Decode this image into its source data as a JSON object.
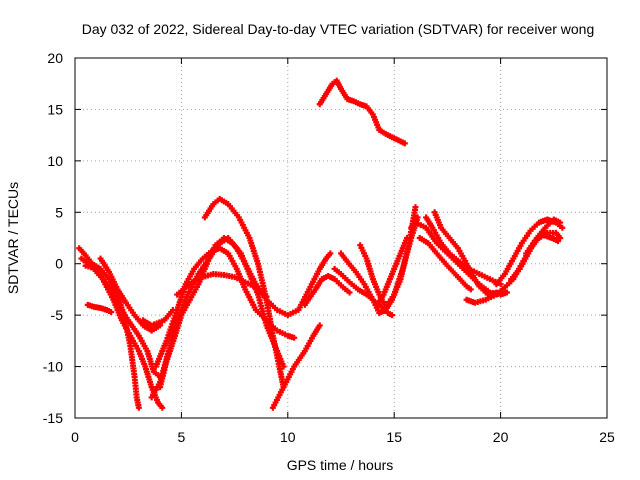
{
  "chart_data": {
    "type": "scatter",
    "title": "Day 032 of 2022, Sidereal Day-to-day VTEC variation (SDTVAR) for receiver wong",
    "xlabel": "GPS time / hours",
    "ylabel": "SDTVAR / TECUs",
    "xlim": [
      0,
      25
    ],
    "ylim": [
      -15,
      20
    ],
    "xticks": [
      0,
      5,
      10,
      15,
      20,
      25
    ],
    "yticks": [
      -15,
      -10,
      -5,
      0,
      5,
      10,
      15,
      20
    ],
    "grid": true,
    "marker": "+",
    "color": "#ff0000",
    "series": [
      {
        "name": "s1",
        "points": [
          [
            0.2,
            1.5
          ],
          [
            0.5,
            0.8
          ],
          [
            0.8,
            0
          ],
          [
            1.2,
            -0.5
          ],
          [
            1.6,
            -1.5
          ],
          [
            2.0,
            -3
          ],
          [
            2.3,
            -5
          ],
          [
            2.6,
            -8
          ],
          [
            2.8,
            -11
          ],
          [
            2.9,
            -13
          ],
          [
            3.0,
            -14
          ]
        ]
      },
      {
        "name": "s2",
        "points": [
          [
            0.3,
            0.5
          ],
          [
            0.8,
            -0.3
          ],
          [
            1.3,
            -1.5
          ],
          [
            1.8,
            -3.5
          ],
          [
            2.2,
            -5.5
          ],
          [
            2.6,
            -7
          ],
          [
            3.0,
            -8.5
          ],
          [
            3.3,
            -10
          ],
          [
            3.6,
            -12
          ],
          [
            3.9,
            -13.5
          ],
          [
            4.1,
            -14
          ]
        ]
      },
      {
        "name": "s3",
        "points": [
          [
            0.5,
            -0.2
          ],
          [
            1.0,
            -0.5
          ],
          [
            1.5,
            -2
          ],
          [
            2.0,
            -3.8
          ],
          [
            2.5,
            -5.5
          ],
          [
            3.0,
            -7
          ],
          [
            3.4,
            -8.5
          ],
          [
            3.7,
            -10.5
          ],
          [
            4.0,
            -11
          ]
        ]
      },
      {
        "name": "s4",
        "points": [
          [
            1.2,
            0.5
          ],
          [
            1.6,
            -0.8
          ],
          [
            2.0,
            -2.5
          ],
          [
            2.4,
            -3.8
          ],
          [
            2.8,
            -5
          ],
          [
            3.2,
            -6
          ],
          [
            3.6,
            -6.5
          ],
          [
            4.0,
            -6
          ]
        ]
      },
      {
        "name": "s5",
        "points": [
          [
            0.6,
            -4
          ],
          [
            0.9,
            -4.2
          ],
          [
            1.2,
            -4.3
          ],
          [
            1.5,
            -4.5
          ],
          [
            1.7,
            -4.7
          ]
        ]
      },
      {
        "name": "s6",
        "points": [
          [
            3.2,
            -5.5
          ],
          [
            3.6,
            -6
          ],
          [
            4.2,
            -5.5
          ],
          [
            4.6,
            -4.5
          ]
        ]
      },
      {
        "name": "s7",
        "points": [
          [
            3.6,
            -13
          ],
          [
            4.0,
            -11.5
          ],
          [
            4.4,
            -8.5
          ],
          [
            4.8,
            -5.5
          ],
          [
            5.3,
            -3
          ],
          [
            5.8,
            -1
          ],
          [
            6.3,
            0.5
          ],
          [
            6.8,
            2
          ],
          [
            7.2,
            2.5
          ],
          [
            7.6,
            1.5
          ],
          [
            8.0,
            0
          ],
          [
            8.5,
            -2
          ],
          [
            9.0,
            -3.5
          ],
          [
            9.5,
            -4.5
          ],
          [
            10.0,
            -5
          ],
          [
            10.5,
            -4.5
          ],
          [
            11.0,
            -2.5
          ],
          [
            11.5,
            -0.5
          ],
          [
            11.8,
            0.5
          ],
          [
            12.0,
            1
          ]
        ]
      },
      {
        "name": "s8",
        "points": [
          [
            3.8,
            -10
          ],
          [
            4.3,
            -7.5
          ],
          [
            4.8,
            -4.5
          ],
          [
            5.2,
            -2
          ],
          [
            5.6,
            -0.5
          ],
          [
            6.0,
            0.5
          ],
          [
            6.4,
            1.2
          ],
          [
            6.8,
            1.5
          ],
          [
            7.2,
            1
          ],
          [
            7.6,
            -0.5
          ],
          [
            8.0,
            -2.5
          ],
          [
            8.5,
            -4.5
          ],
          [
            9.0,
            -5.5
          ],
          [
            9.5,
            -6.5
          ],
          [
            10.0,
            -7
          ],
          [
            10.3,
            -7.2
          ]
        ]
      },
      {
        "name": "s9",
        "points": [
          [
            4.0,
            -12
          ],
          [
            4.3,
            -9.5
          ],
          [
            4.7,
            -7
          ],
          [
            5.0,
            -5
          ],
          [
            5.4,
            -3.5
          ],
          [
            5.8,
            -2
          ],
          [
            6.2,
            0
          ],
          [
            6.6,
            1.8
          ],
          [
            7.0,
            2.5
          ],
          [
            7.4,
            2
          ],
          [
            7.8,
            1
          ],
          [
            8.2,
            -1
          ],
          [
            8.6,
            -3
          ],
          [
            9.0,
            -6
          ],
          [
            9.4,
            -8
          ],
          [
            9.8,
            -10
          ]
        ]
      },
      {
        "name": "s10",
        "points": [
          [
            4.8,
            -3
          ],
          [
            5.5,
            -1.8
          ],
          [
            6.0,
            -1.3
          ],
          [
            6.5,
            -1
          ],
          [
            7.0,
            -1.1
          ],
          [
            7.5,
            -1.3
          ],
          [
            8.0,
            -1.8
          ],
          [
            8.5,
            -2.3
          ],
          [
            9.0,
            -3.2
          ]
        ]
      },
      {
        "name": "s11",
        "points": [
          [
            6.1,
            4.5
          ],
          [
            6.5,
            5.8
          ],
          [
            6.8,
            6.3
          ],
          [
            7.2,
            5.8
          ],
          [
            7.7,
            4.5
          ],
          [
            8.2,
            2.5
          ],
          [
            8.6,
            0
          ],
          [
            9.0,
            -3.5
          ],
          [
            9.3,
            -7
          ],
          [
            9.6,
            -10
          ],
          [
            9.8,
            -12
          ]
        ]
      },
      {
        "name": "s12",
        "points": [
          [
            9.3,
            -14
          ],
          [
            9.8,
            -12
          ],
          [
            10.3,
            -10
          ],
          [
            10.8,
            -8.5
          ],
          [
            11.2,
            -7
          ],
          [
            11.5,
            -6
          ]
        ]
      },
      {
        "name": "s13",
        "points": [
          [
            10.8,
            -4
          ],
          [
            11.3,
            -2.5
          ],
          [
            11.6,
            -1.5
          ],
          [
            11.9,
            -1.2
          ],
          [
            12.2,
            -1.5
          ],
          [
            12.6,
            -2.3
          ],
          [
            12.9,
            -2.8
          ]
        ]
      },
      {
        "name": "s14",
        "points": [
          [
            11.5,
            15.5
          ],
          [
            11.8,
            16.5
          ],
          [
            12.1,
            17.5
          ],
          [
            12.3,
            17.8
          ],
          [
            12.5,
            17
          ],
          [
            12.8,
            16
          ],
          [
            13.1,
            15.8
          ],
          [
            13.4,
            15.5
          ],
          [
            13.7,
            15.3
          ],
          [
            14.0,
            14.5
          ],
          [
            14.3,
            13
          ],
          [
            14.7,
            12.5
          ],
          [
            15.0,
            12.2
          ],
          [
            15.4,
            11.8
          ],
          [
            15.5,
            11.7
          ]
        ]
      },
      {
        "name": "s15",
        "points": [
          [
            12.2,
            -0.5
          ],
          [
            12.5,
            -1
          ],
          [
            12.9,
            -1.8
          ],
          [
            13.3,
            -2.5
          ],
          [
            13.7,
            -3
          ],
          [
            14.0,
            -3.5
          ],
          [
            14.4,
            -4.2
          ],
          [
            14.7,
            -4.8
          ],
          [
            14.9,
            -5
          ]
        ]
      },
      {
        "name": "s16",
        "points": [
          [
            12.5,
            1
          ],
          [
            12.8,
            0.2
          ],
          [
            13.2,
            -0.8
          ],
          [
            13.6,
            -2
          ],
          [
            14.0,
            -3.5
          ],
          [
            14.3,
            -4.8
          ],
          [
            14.6,
            -4.5
          ],
          [
            14.9,
            -3.5
          ],
          [
            15.3,
            -1.5
          ],
          [
            15.7,
            2
          ],
          [
            16.0,
            5.5
          ]
        ]
      },
      {
        "name": "s17",
        "points": [
          [
            13.4,
            1.8
          ],
          [
            13.7,
            0.5
          ],
          [
            14.0,
            -1.5
          ],
          [
            14.3,
            -3
          ],
          [
            14.6,
            -4.2
          ],
          [
            15.0,
            -3
          ],
          [
            15.4,
            -0.5
          ],
          [
            15.8,
            2.5
          ],
          [
            16.1,
            4.5
          ]
        ]
      },
      {
        "name": "s18",
        "points": [
          [
            14.2,
            -4
          ],
          [
            14.5,
            -3
          ],
          [
            14.8,
            -1.5
          ],
          [
            15.1,
            0
          ],
          [
            15.4,
            1.5
          ],
          [
            15.6,
            2.5
          ]
        ]
      },
      {
        "name": "s19",
        "points": [
          [
            15.8,
            3.5
          ],
          [
            16.0,
            4
          ],
          [
            16.5,
            3.5
          ],
          [
            17.0,
            2
          ],
          [
            17.5,
            1
          ],
          [
            18.0,
            0
          ],
          [
            18.5,
            -1
          ],
          [
            19.0,
            -2
          ],
          [
            19.5,
            -2.8
          ],
          [
            20.0,
            -3
          ],
          [
            20.3,
            -2.8
          ]
        ]
      },
      {
        "name": "s20",
        "points": [
          [
            16.5,
            4.5
          ],
          [
            16.8,
            3.5
          ],
          [
            17.2,
            2
          ],
          [
            17.6,
            1
          ],
          [
            18.0,
            0.3
          ],
          [
            18.5,
            -0.5
          ],
          [
            19.0,
            -1
          ],
          [
            19.5,
            -1.5
          ],
          [
            20.0,
            -2
          ]
        ]
      },
      {
        "name": "s21",
        "points": [
          [
            16.9,
            5
          ],
          [
            17.2,
            3.5
          ],
          [
            17.6,
            2.5
          ],
          [
            18.0,
            1.5
          ],
          [
            18.4,
            0
          ],
          [
            18.7,
            -1.2
          ],
          [
            19.0,
            -2.2
          ],
          [
            19.4,
            -3
          ],
          [
            19.8,
            -2.8
          ]
        ]
      },
      {
        "name": "s22",
        "points": [
          [
            16.2,
            2.5
          ],
          [
            16.6,
            2
          ],
          [
            17.0,
            1
          ],
          [
            17.5,
            -0.2
          ],
          [
            18.0,
            -1.3
          ],
          [
            18.4,
            -2.2
          ],
          [
            18.6,
            -2.5
          ]
        ]
      },
      {
        "name": "s23",
        "points": [
          [
            18.4,
            -3.5
          ],
          [
            18.8,
            -3.8
          ],
          [
            19.3,
            -3.5
          ],
          [
            19.8,
            -3
          ],
          [
            20.2,
            -2.3
          ],
          [
            20.6,
            -1.5
          ],
          [
            21.0,
            0
          ],
          [
            21.4,
            1.5
          ],
          [
            21.8,
            2.5
          ],
          [
            22.2,
            3
          ],
          [
            22.6,
            3
          ],
          [
            22.8,
            2.5
          ]
        ]
      },
      {
        "name": "s24",
        "points": [
          [
            19.8,
            -2
          ],
          [
            20.2,
            -1
          ],
          [
            20.6,
            0.5
          ],
          [
            21.0,
            2
          ],
          [
            21.4,
            3.2
          ],
          [
            21.8,
            4
          ],
          [
            22.2,
            4.3
          ],
          [
            22.6,
            4
          ],
          [
            22.9,
            3.5
          ]
        ]
      },
      {
        "name": "s25",
        "points": [
          [
            20.5,
            -1.5
          ],
          [
            20.9,
            -0.5
          ],
          [
            21.3,
            1
          ],
          [
            21.7,
            2.5
          ],
          [
            22.1,
            3.5
          ],
          [
            22.5,
            4.3
          ],
          [
            22.8,
            4
          ]
        ]
      },
      {
        "name": "s26",
        "points": [
          [
            21.2,
            1
          ],
          [
            21.6,
            2.2
          ],
          [
            22.0,
            2.8
          ],
          [
            22.4,
            2.5
          ],
          [
            22.7,
            2.2
          ]
        ]
      }
    ]
  }
}
